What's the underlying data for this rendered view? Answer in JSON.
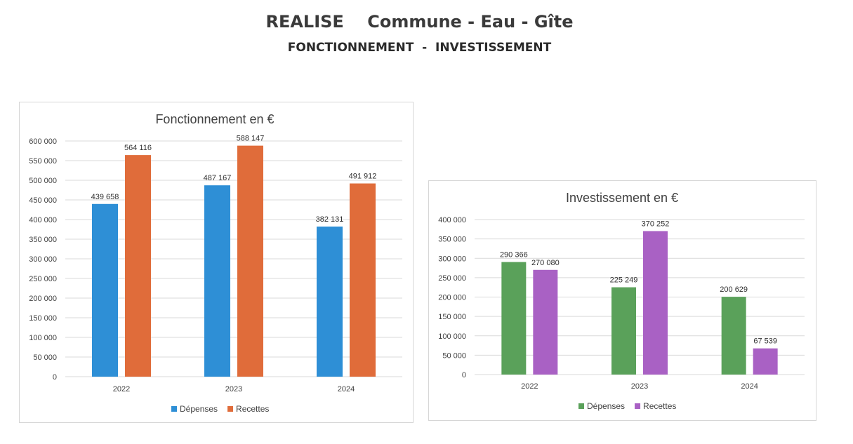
{
  "page": {
    "title": "REALISE    Commune - Eau - Gîte",
    "subtitle": "FONCTIONNEMENT  -  INVESTISSEMENT"
  },
  "chart_data": [
    {
      "type": "bar",
      "title": "Fonctionnement en €",
      "categories": [
        "2022",
        "2023",
        "2024"
      ],
      "series": [
        {
          "name": "Dépenses",
          "values": [
            439658,
            487167,
            382131
          ],
          "labels": [
            "439 658",
            "487 167",
            "382 131"
          ],
          "color": "#2e8fd6"
        },
        {
          "name": "Recettes",
          "values": [
            564116,
            588147,
            491912
          ],
          "labels": [
            "564 116",
            "588 147",
            "491 912"
          ],
          "color": "#e06c3a"
        }
      ],
      "ylim": [
        0,
        600000
      ],
      "yticks": [
        0,
        50000,
        100000,
        150000,
        200000,
        250000,
        300000,
        350000,
        400000,
        450000,
        500000,
        550000,
        600000
      ],
      "yticklabels": [
        "0",
        "50 000",
        "100 000",
        "150 000",
        "200 000",
        "250 000",
        "300 000",
        "350 000",
        "400 000",
        "450 000",
        "500 000",
        "550 000",
        "600 000"
      ],
      "grid": true,
      "legend": "bottom"
    },
    {
      "type": "bar",
      "title": "Investissement en €",
      "categories": [
        "2022",
        "2023",
        "2024"
      ],
      "series": [
        {
          "name": "Dépenses",
          "values": [
            290366,
            225249,
            200629
          ],
          "labels": [
            "290 366",
            "225 249",
            "200 629"
          ],
          "color": "#5aa15a"
        },
        {
          "name": "Recettes",
          "values": [
            270080,
            370252,
            67539
          ],
          "labels": [
            "270 080",
            "370 252",
            "67 539"
          ],
          "color": "#a961c4"
        }
      ],
      "ylim": [
        0,
        400000
      ],
      "yticks": [
        0,
        50000,
        100000,
        150000,
        200000,
        250000,
        300000,
        350000,
        400000
      ],
      "yticklabels": [
        "0",
        "50 000",
        "100 000",
        "150 000",
        "200 000",
        "250 000",
        "300 000",
        "350 000",
        "400 000"
      ],
      "grid": true,
      "legend": "bottom"
    }
  ]
}
